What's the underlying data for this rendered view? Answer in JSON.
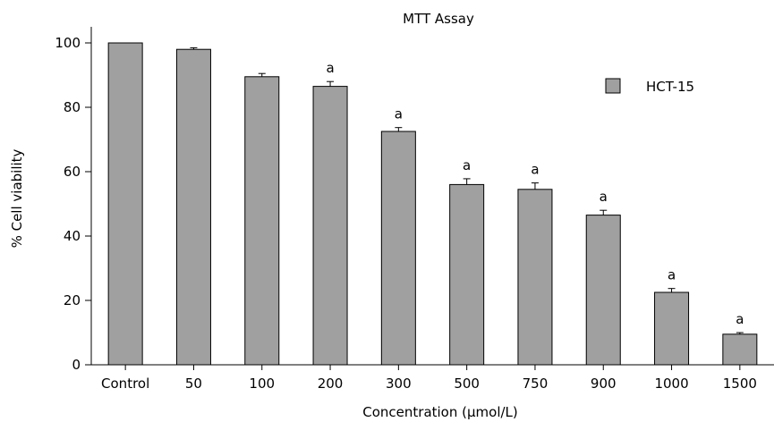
{
  "chart_data": {
    "type": "bar",
    "title": "MTT Assay",
    "xlabel": "Concentration (µmol/L)",
    "ylabel": "% Cell viability",
    "ylim": [
      0,
      105
    ],
    "yticks": [
      0,
      20,
      40,
      60,
      80,
      100
    ],
    "categories": [
      "Control",
      "50",
      "100",
      "200",
      "300",
      "500",
      "750",
      "900",
      "1000",
      "1500"
    ],
    "series": [
      {
        "name": "HCT-15",
        "color": "#a0a0a0",
        "values": [
          100,
          98,
          89.5,
          86.5,
          72.5,
          56,
          54.5,
          46.5,
          22.5,
          9.5
        ],
        "errors": [
          0,
          0.5,
          1,
          1.5,
          1.2,
          1.8,
          2,
          1.5,
          1.2,
          0.5
        ],
        "annotations": [
          "",
          "",
          "",
          "a",
          "a",
          "a",
          "a",
          "a",
          "a",
          "a"
        ]
      }
    ],
    "legend_position": "top-right",
    "grid": false
  }
}
